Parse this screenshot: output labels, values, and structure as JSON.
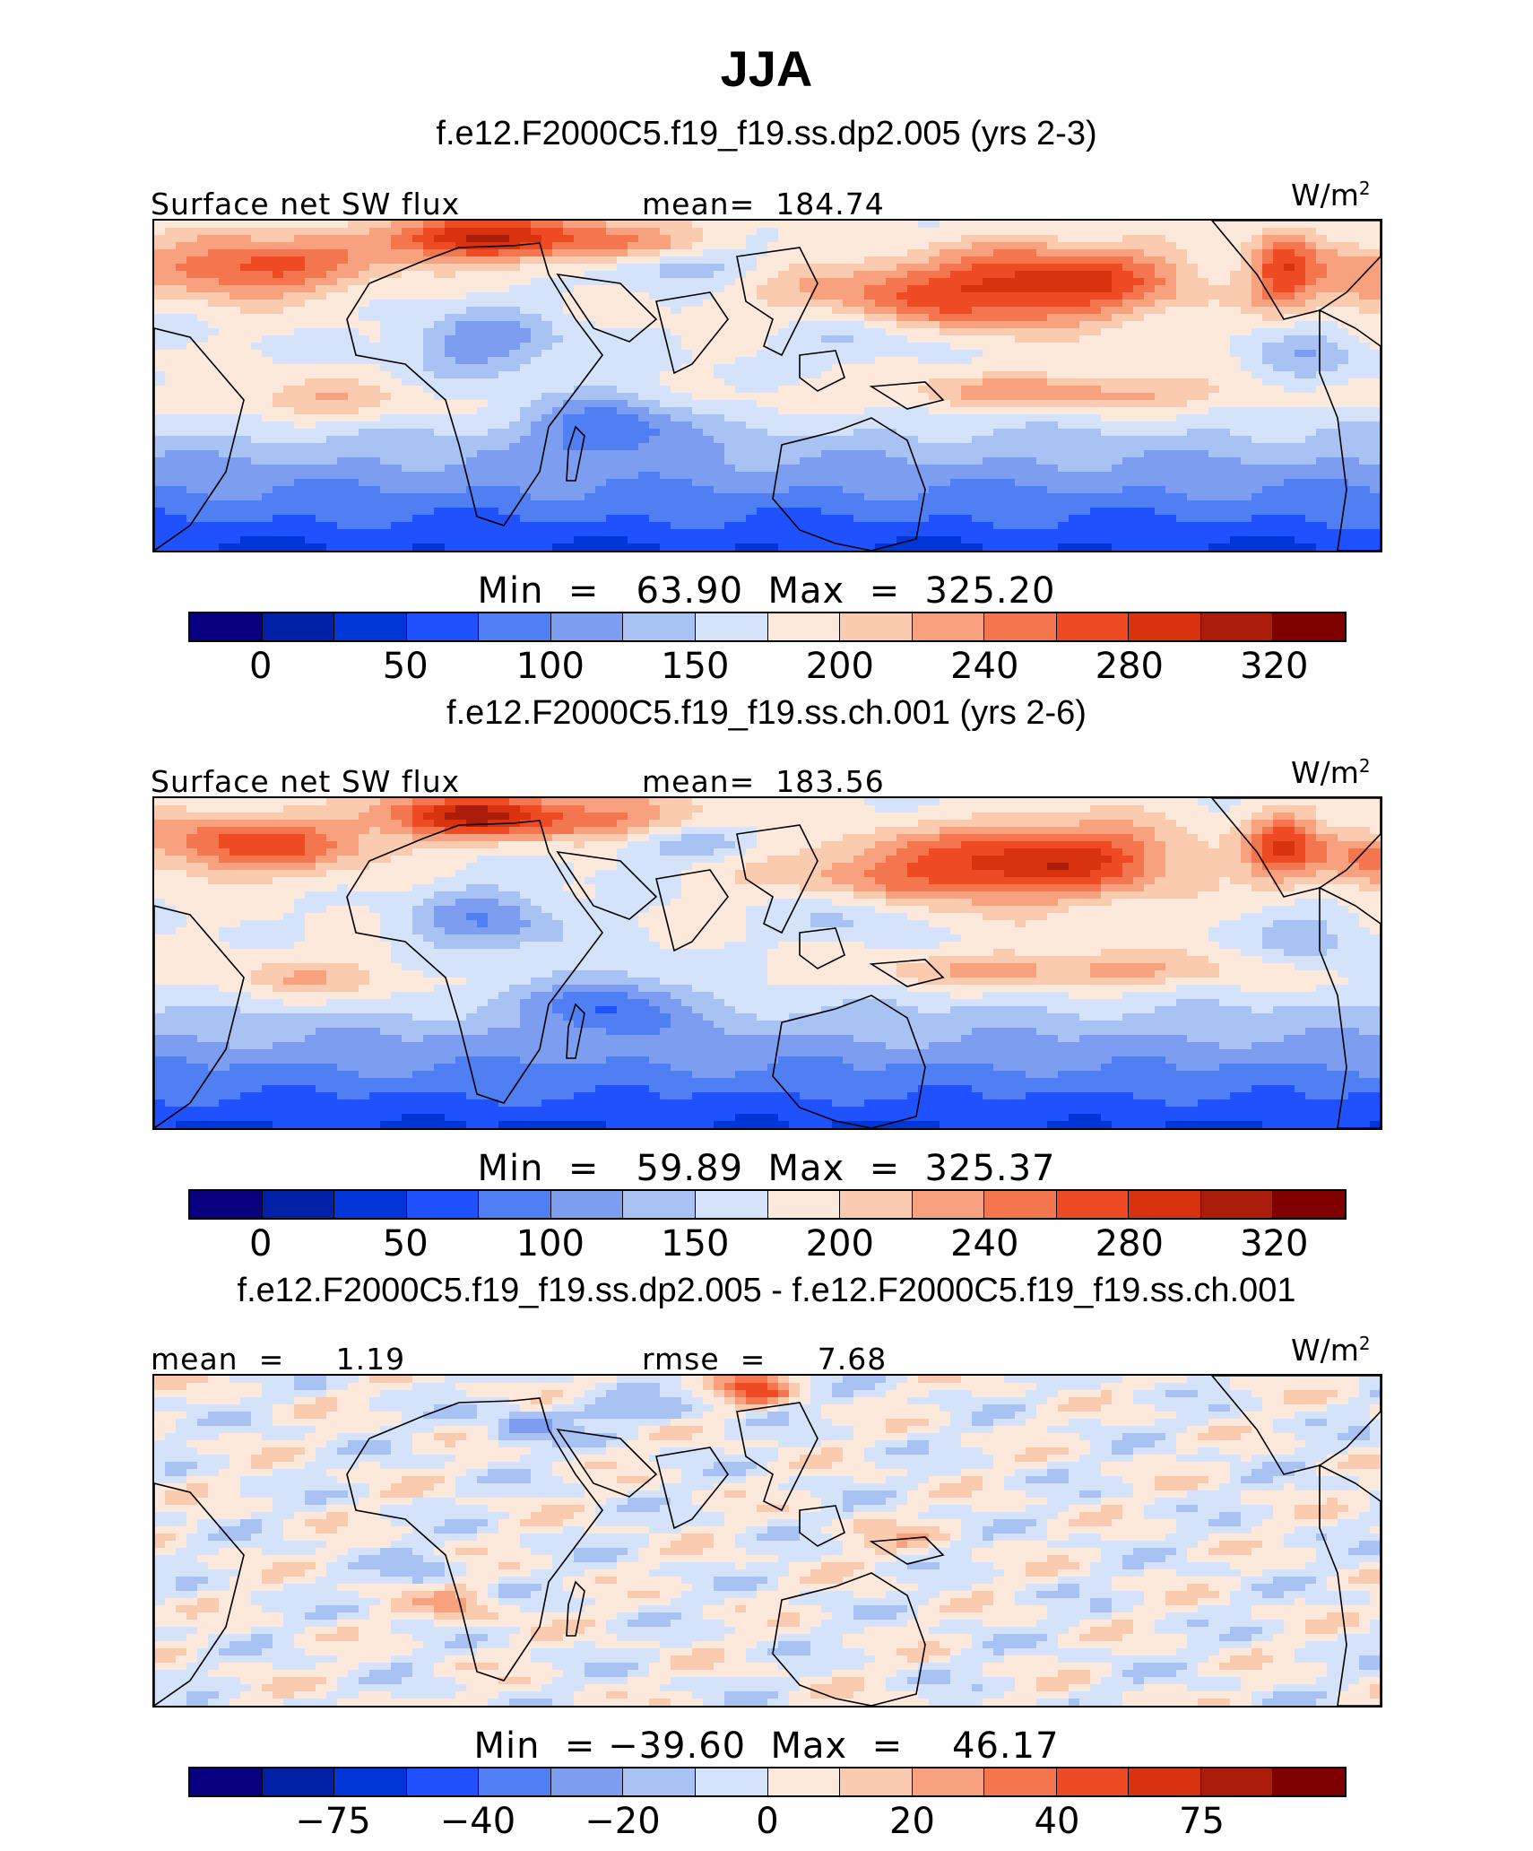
{
  "figure": {
    "title": "JJA",
    "field_label": "Surface net SW flux",
    "units": "W/m",
    "units_sup": "2"
  },
  "colorscale": [
    "#08007f",
    "#0021a6",
    "#0036d8",
    "#1f52fe",
    "#4f7ff2",
    "#7d9ef0",
    "#a8c2f4",
    "#d4e3fa",
    "#fde8dc",
    "#fbcbb0",
    "#f7a17f",
    "#f3764f",
    "#ee4a24",
    "#d8320f",
    "#ab1c0a",
    "#800000"
  ],
  "panels": [
    {
      "id": "panel-1",
      "case_title": "f.e12.F2000C5.f19_f19.ss.dp2.005 (yrs 2-3)",
      "left_stat_label": "Surface net SW flux",
      "right_stat": "mean=  184.74",
      "minmax": "Min  =   63.90  Max  =  325.20",
      "colorbar_ticks": [
        "0",
        "50",
        "100",
        "150",
        "200",
        "240",
        "280",
        "320"
      ],
      "map_field": "mean",
      "variant": 0
    },
    {
      "id": "panel-2",
      "case_title": "f.e12.F2000C5.f19_f19.ss.ch.001 (yrs 2-6)",
      "left_stat_label": "Surface net SW flux",
      "right_stat": "mean=  183.56",
      "minmax": "Min  =   59.89  Max  =  325.37",
      "colorbar_ticks": [
        "0",
        "50",
        "100",
        "150",
        "200",
        "240",
        "280",
        "320"
      ],
      "map_field": "mean",
      "variant": 1
    },
    {
      "id": "panel-3",
      "case_title": "f.e12.F2000C5.f19_f19.ss.dp2.005 - f.e12.F2000C5.f19_f19.ss.ch.001",
      "left_stat_label": "mean  =     1.19",
      "right_stat": "rmse  =     7.68",
      "minmax": "Min  = −39.60  Max  =    46.17",
      "colorbar_ticks": [
        "−75",
        "−40",
        "−20",
        "0",
        "20",
        "40",
        "75"
      ],
      "map_field": "difference",
      "variant": 2
    }
  ]
}
